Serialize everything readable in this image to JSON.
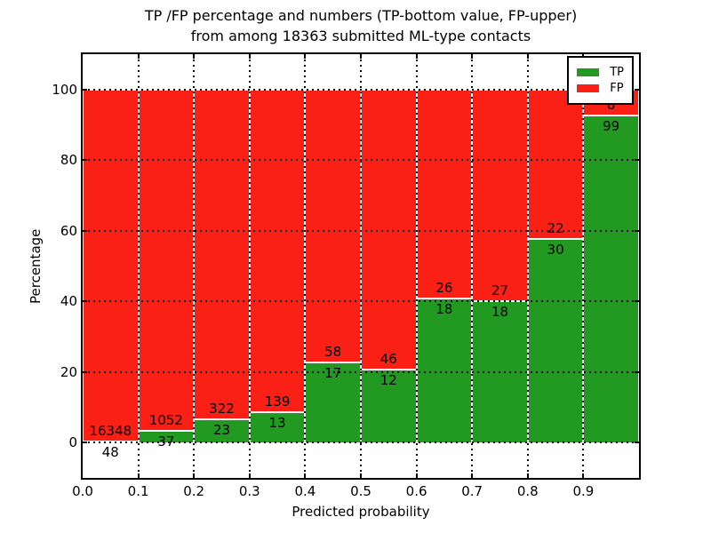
{
  "title": {
    "line1": "TP /FP percentage and numbers (TP-bottom value, FP-upper)",
    "line2": "from among 18363 submitted ML-type contacts"
  },
  "axes": {
    "xlabel": "Predicted probability",
    "ylabel": "Percentage",
    "x_tick_labels": [
      "0.0",
      "0.1",
      "0.2",
      "0.3",
      "0.4",
      "0.5",
      "0.6",
      "0.7",
      "0.8",
      "0.9"
    ],
    "y_tick_labels": [
      "0",
      "20",
      "40",
      "60",
      "80",
      "100"
    ]
  },
  "legend": {
    "items": [
      {
        "label": "TP",
        "color": "#229a22"
      },
      {
        "label": "FP",
        "color": "#fa2016"
      }
    ]
  },
  "chart_data": {
    "type": "bar",
    "stacked": true,
    "normalized_to_percent": true,
    "title": "TP /FP percentage and numbers (TP-bottom value, FP-upper) from among 18363 submitted ML-type contacts",
    "xlabel": "Predicted probability",
    "ylabel": "Percentage",
    "xlim": [
      0.0,
      1.0
    ],
    "ylim": [
      -10,
      110
    ],
    "x_tick_values": [
      0.0,
      0.1,
      0.2,
      0.3,
      0.4,
      0.5,
      0.6,
      0.7,
      0.8,
      0.9
    ],
    "y_tick_values": [
      0,
      20,
      40,
      60,
      80,
      100
    ],
    "grid": "dotted",
    "legend_position": "upper right",
    "total_contacts": 18363,
    "colors": {
      "TP": "#229a22",
      "FP": "#fa2016"
    },
    "categories": [
      "0.0-0.1",
      "0.1-0.2",
      "0.2-0.3",
      "0.3-0.4",
      "0.4-0.5",
      "0.5-0.6",
      "0.6-0.7",
      "0.7-0.8",
      "0.8-0.9",
      "0.9-1.0"
    ],
    "series": [
      {
        "name": "TP",
        "values": [
          48,
          37,
          23,
          13,
          17,
          12,
          18,
          18,
          30,
          99
        ]
      },
      {
        "name": "FP",
        "values": [
          16348,
          1052,
          322,
          139,
          58,
          46,
          26,
          27,
          22,
          8
        ]
      }
    ],
    "bins": [
      {
        "x0": 0.0,
        "x1": 0.1,
        "tp": 48,
        "fp": 16348
      },
      {
        "x0": 0.1,
        "x1": 0.2,
        "tp": 37,
        "fp": 1052
      },
      {
        "x0": 0.2,
        "x1": 0.3,
        "tp": 23,
        "fp": 322
      },
      {
        "x0": 0.3,
        "x1": 0.4,
        "tp": 13,
        "fp": 139
      },
      {
        "x0": 0.4,
        "x1": 0.5,
        "tp": 17,
        "fp": 58
      },
      {
        "x0": 0.5,
        "x1": 0.6,
        "tp": 12,
        "fp": 46
      },
      {
        "x0": 0.6,
        "x1": 0.7,
        "tp": 18,
        "fp": 26
      },
      {
        "x0": 0.7,
        "x1": 0.8,
        "tp": 18,
        "fp": 27
      },
      {
        "x0": 0.8,
        "x1": 0.9,
        "tp": 30,
        "fp": 22
      },
      {
        "x0": 0.9,
        "x1": 1.0,
        "tp": 99,
        "fp": 8
      }
    ]
  }
}
